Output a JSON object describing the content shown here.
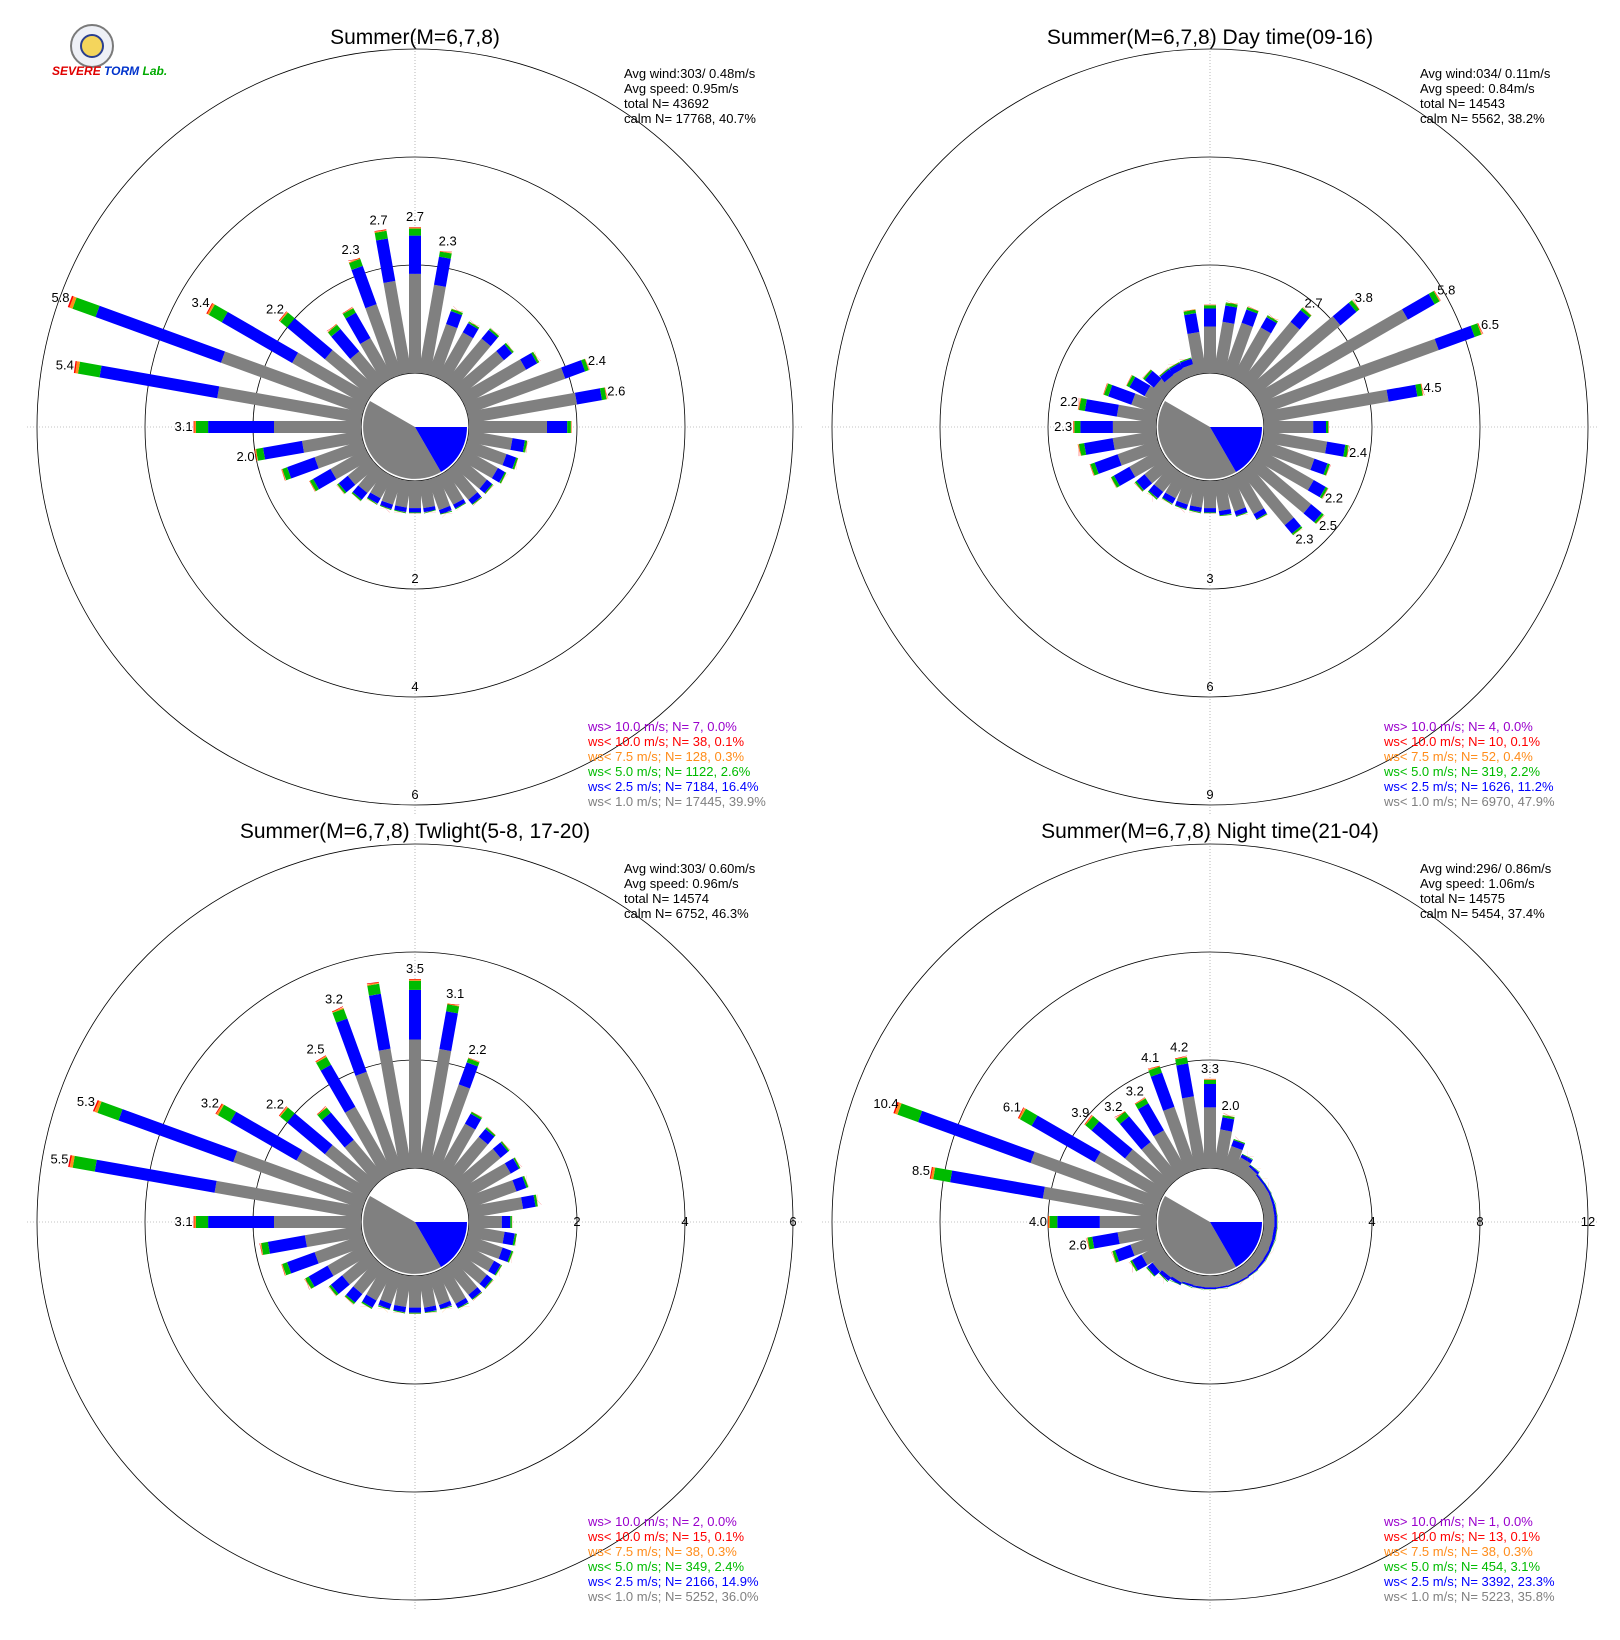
{
  "panels": [
    {
      "title": "Summer(M=6,7,8)",
      "stats": [
        "Avg wind:303/ 0.48m/s",
        "Avg speed: 0.95m/s",
        "total N=      43692",
        "calm N=  17768,  40.7%"
      ],
      "ring_max": 6,
      "ring_labels": [
        "2",
        "4",
        "6"
      ],
      "ring_axis": "south",
      "legend": [
        "ws> 10.0 m/s; N=     7,  0.0%",
        "ws< 10.0 m/s; N=    38,  0.1%",
        "ws<  7.5 m/s; N=   128,  0.3%",
        "ws<  5.0 m/s; N=  1122,  2.6%",
        "ws<  2.5 m/s; N=  7184, 16.4%",
        "ws<  1.0 m/s; N= 17445, 39.9%"
      ]
    },
    {
      "title": "Summer(M=6,7,8) Day time(09-16)",
      "stats": [
        "Avg wind:034/ 0.11m/s",
        "Avg speed: 0.84m/s",
        "total N=      14543",
        "calm N=   5562,  38.2%"
      ],
      "ring_max": 9,
      "ring_labels": [
        "3",
        "6",
        "9"
      ],
      "ring_axis": "south",
      "legend": [
        "ws> 10.0 m/s; N=     4,  0.0%",
        "ws< 10.0 m/s; N=    10,  0.1%",
        "ws<  7.5 m/s; N=    52,  0.4%",
        "ws<  5.0 m/s; N=   319,  2.2%",
        "ws<  2.5 m/s; N=  1626, 11.2%",
        "ws<  1.0 m/s; N=  6970, 47.9%"
      ]
    },
    {
      "title": "Summer(M=6,7,8) Twlight(5-8, 17-20)",
      "stats": [
        "Avg wind:303/ 0.60m/s",
        "Avg speed: 0.96m/s",
        "total N=      14574",
        "calm N=   6752,  46.3%"
      ],
      "ring_max": 6,
      "ring_labels": [
        "2",
        "4",
        "6"
      ],
      "ring_axis": "east",
      "legend": [
        "ws> 10.0 m/s; N=     2,  0.0%",
        "ws< 10.0 m/s; N=    15,  0.1%",
        "ws<  7.5 m/s; N=    38,  0.3%",
        "ws<  5.0 m/s; N=   349,  2.4%",
        "ws<  2.5 m/s; N=  2166, 14.9%",
        "ws<  1.0 m/s; N=  5252, 36.0%"
      ]
    },
    {
      "title": "Summer(M=6,7,8) Night time(21-04)",
      "stats": [
        "Avg wind:296/ 0.86m/s",
        "Avg speed: 1.06m/s",
        "total N=      14575",
        "calm N=   5454,  37.4%"
      ],
      "ring_max": 12,
      "ring_labels": [
        "4",
        "8",
        "12"
      ],
      "ring_axis": "east",
      "legend": [
        "ws> 10.0 m/s; N=     1,  0.0%",
        "ws< 10.0 m/s; N=    13,  0.1%",
        "ws<  7.5 m/s; N=    38,  0.3%",
        "ws<  5.0 m/s; N=   454,  3.1%",
        "ws<  2.5 m/s; N=  3392, 23.3%",
        "ws<  1.0 m/s; N=  5223, 35.8%"
      ]
    }
  ],
  "legend_colors": [
    "#9900cc",
    "#ff0000",
    "#ff8c1a",
    "#00bb00",
    "#0000ff",
    "#808080"
  ],
  "logo": {
    "line1": "S",
    "line2": "EVERE",
    "line3": "TORM",
    "line4": "Lab."
  },
  "chart_data": [
    {
      "type": "wind-rose",
      "title": "Summer(M=6,7,8)",
      "rlim": [
        0,
        6
      ],
      "directions_deg": [
        0,
        10,
        20,
        30,
        40,
        50,
        60,
        70,
        80,
        90,
        100,
        110,
        120,
        130,
        140,
        150,
        160,
        170,
        180,
        190,
        200,
        210,
        220,
        230,
        240,
        250,
        260,
        270,
        280,
        290,
        300,
        310,
        320,
        330,
        340,
        350
      ],
      "total_percent": [
        2.7,
        2.3,
        1.3,
        1.2,
        1.3,
        1.3,
        1.6,
        2.4,
        2.6,
        1.9,
        1.1,
        1.0,
        0.9,
        0.8,
        0.8,
        0.7,
        0.7,
        0.6,
        0.6,
        0.6,
        0.6,
        0.6,
        0.7,
        0.8,
        1.2,
        1.6,
        2.0,
        3.1,
        5.4,
        5.8,
        3.4,
        2.2,
        1.4,
        1.5,
        2.3,
        2.7
      ],
      "labeled": [
        [
          0,
          "2.7"
        ],
        [
          10,
          "2.3"
        ],
        [
          70,
          "2.4"
        ],
        [
          80,
          "2.6"
        ],
        [
          260,
          "2.0"
        ],
        [
          270,
          "3.1"
        ],
        [
          280,
          "5.4"
        ],
        [
          290,
          "5.8"
        ],
        [
          300,
          "3.4"
        ],
        [
          310,
          "2.2"
        ],
        [
          340,
          "2.3"
        ],
        [
          350,
          "2.7"
        ]
      ]
    },
    {
      "type": "wind-rose",
      "title": "Summer(M=6,7,8) Day time(09-16)",
      "rlim": [
        0,
        9
      ],
      "directions_deg": [
        0,
        10,
        20,
        30,
        40,
        50,
        60,
        70,
        80,
        90,
        100,
        110,
        120,
        130,
        140,
        150,
        160,
        170,
        180,
        190,
        200,
        210,
        220,
        230,
        240,
        250,
        260,
        270,
        280,
        290,
        300,
        310,
        320,
        330,
        340,
        350
      ],
      "total_percent": [
        1.9,
        2.0,
        2.0,
        2.0,
        2.7,
        3.8,
        5.8,
        6.5,
        4.5,
        1.8,
        2.4,
        2.0,
        2.2,
        2.5,
        2.3,
        1.4,
        1.1,
        1.0,
        0.9,
        0.9,
        0.9,
        0.9,
        1.0,
        1.1,
        1.6,
        2.0,
        2.2,
        2.3,
        2.2,
        1.6,
        1.1,
        0.8,
        0.5,
        0.5,
        0.5,
        1.8
      ],
      "labeled": [
        [
          40,
          "2.7"
        ],
        [
          50,
          "3.8"
        ],
        [
          60,
          "5.8"
        ],
        [
          70,
          "6.5"
        ],
        [
          80,
          "4.5"
        ],
        [
          100,
          "2.4"
        ],
        [
          120,
          "2.2"
        ],
        [
          130,
          "2.5"
        ],
        [
          140,
          "2.3"
        ],
        [
          270,
          "2.3"
        ],
        [
          280,
          "2.2"
        ]
      ]
    },
    {
      "type": "wind-rose",
      "title": "Summer(M=6,7,8) Twlight(5-8, 17-20)",
      "rlim": [
        0,
        6
      ],
      "directions_deg": [
        0,
        10,
        20,
        30,
        40,
        50,
        60,
        70,
        80,
        90,
        100,
        110,
        120,
        130,
        140,
        150,
        160,
        170,
        180,
        190,
        200,
        210,
        220,
        230,
        240,
        250,
        260,
        270,
        280,
        290,
        300,
        310,
        320,
        330,
        340,
        350
      ],
      "total_percent": [
        3.5,
        3.1,
        2.2,
        1.3,
        1.2,
        1.2,
        1.2,
        1.2,
        1.3,
        0.8,
        0.9,
        0.9,
        0.8,
        0.8,
        0.8,
        0.8,
        0.7,
        0.7,
        0.7,
        0.7,
        0.7,
        0.8,
        0.9,
        1.0,
        1.3,
        1.6,
        1.9,
        3.1,
        5.5,
        5.3,
        3.2,
        2.2,
        1.7,
        2.5,
        3.2,
        3.5
      ],
      "labeled": [
        [
          0,
          "3.5"
        ],
        [
          10,
          "3.1"
        ],
        [
          20,
          "2.2"
        ],
        [
          270,
          "3.1"
        ],
        [
          280,
          "5.5"
        ],
        [
          290,
          "5.3"
        ],
        [
          300,
          "3.2"
        ],
        [
          310,
          "2.2"
        ],
        [
          330,
          "2.5"
        ],
        [
          340,
          "3.2"
        ]
      ]
    },
    {
      "type": "wind-rose",
      "title": "Summer(M=6,7,8) Night time(21-04)",
      "rlim": [
        0,
        12
      ],
      "directions_deg": [
        0,
        10,
        20,
        30,
        40,
        50,
        60,
        70,
        80,
        90,
        100,
        110,
        120,
        130,
        140,
        150,
        160,
        170,
        180,
        190,
        200,
        210,
        220,
        230,
        240,
        250,
        260,
        270,
        280,
        290,
        300,
        310,
        320,
        330,
        340,
        350
      ],
      "total_percent": [
        3.3,
        2.0,
        1.2,
        0.8,
        0.6,
        0.5,
        0.5,
        0.5,
        0.5,
        0.5,
        0.5,
        0.5,
        0.5,
        0.5,
        0.5,
        0.5,
        0.5,
        0.5,
        0.5,
        0.5,
        0.5,
        0.6,
        0.7,
        0.9,
        1.3,
        1.8,
        2.6,
        4.0,
        8.5,
        10.4,
        6.1,
        3.9,
        3.2,
        3.2,
        4.1,
        4.2
      ],
      "labeled": [
        [
          0,
          "3.3"
        ],
        [
          10,
          "2.0"
        ],
        [
          260,
          "2.6"
        ],
        [
          270,
          "4.0"
        ],
        [
          280,
          "8.5"
        ],
        [
          290,
          "10.4"
        ],
        [
          300,
          "6.1"
        ],
        [
          310,
          "3.9"
        ],
        [
          320,
          "3.2"
        ],
        [
          330,
          "3.2"
        ],
        [
          340,
          "4.1"
        ],
        [
          350,
          "4.2"
        ]
      ]
    }
  ]
}
